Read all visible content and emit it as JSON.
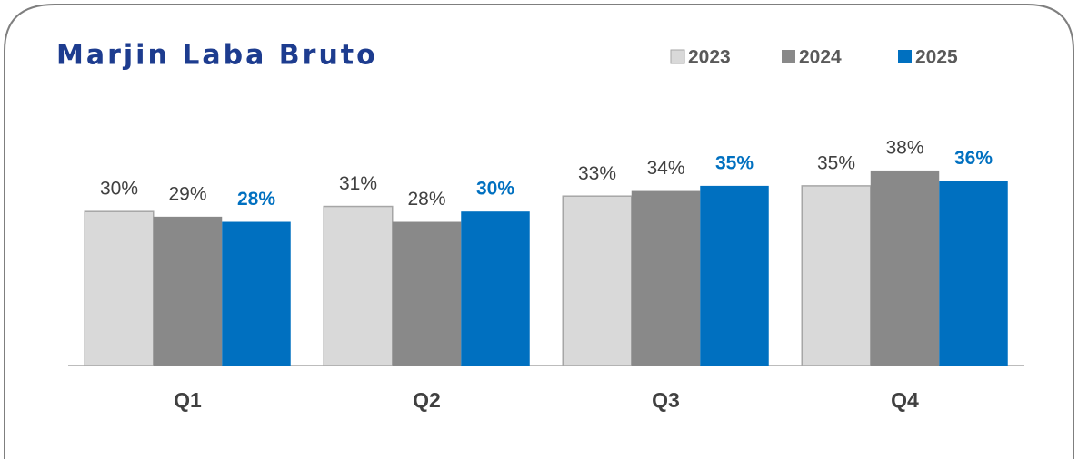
{
  "chart_data": {
    "type": "bar",
    "title": "Marjin Laba Bruto",
    "categories": [
      "Q1",
      "Q2",
      "Q3",
      "Q4"
    ],
    "series": [
      {
        "name": "2023",
        "color": "#d9d9d9",
        "values": [
          30,
          31,
          33,
          35
        ],
        "value_labels": [
          "30%",
          "31%",
          "33%",
          "35%"
        ]
      },
      {
        "name": "2024",
        "color": "#898989",
        "values": [
          29,
          28,
          34,
          38
        ],
        "value_labels": [
          "29%",
          "28%",
          "34%",
          "38%"
        ]
      },
      {
        "name": "2025",
        "color": "#0070c0",
        "values": [
          28,
          30,
          35,
          36
        ],
        "value_labels": [
          "28%",
          "30%",
          "35%",
          "36%"
        ]
      }
    ],
    "ylim": [
      0,
      50
    ],
    "legend": "top-right"
  }
}
